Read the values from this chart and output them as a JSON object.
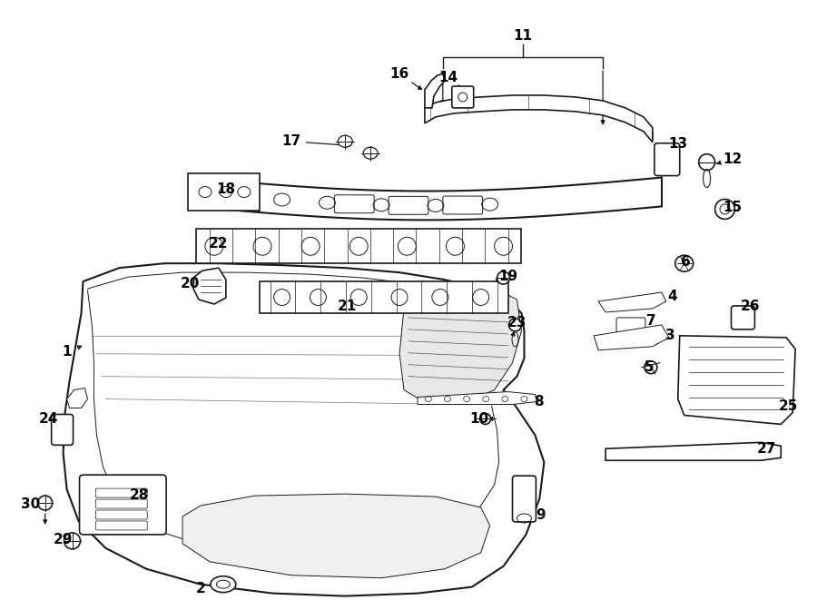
{
  "bg_color": "#ffffff",
  "line_color": "#1a1a1a",
  "label_color": "#000000",
  "fig_width": 9.0,
  "fig_height": 6.61,
  "dpi": 100
}
